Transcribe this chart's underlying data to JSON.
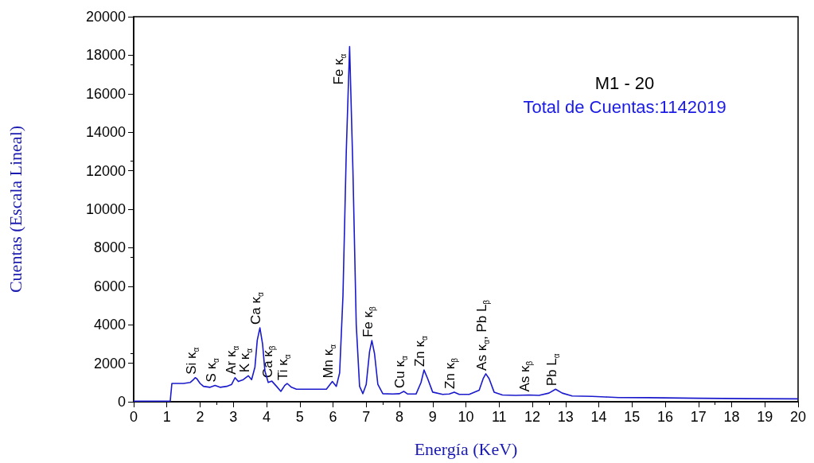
{
  "chart_data": {
    "type": "line",
    "title": "M1 - 20",
    "subtitle": "Total de Cuentas:1142019",
    "xlabel": "Energía (KeV)",
    "ylabel": "Cuentas (Escala Lineal)",
    "xlim": [
      0,
      20
    ],
    "xticks": [
      0,
      1,
      2,
      3,
      4,
      5,
      6,
      7,
      8,
      9,
      10,
      11,
      12,
      13,
      14,
      15,
      16,
      17,
      18,
      19,
      20
    ],
    "ylim": [
      0,
      20000
    ],
    "yticks": [
      0,
      2000,
      4000,
      6000,
      8000,
      10000,
      12000,
      14000,
      16000,
      18000,
      20000
    ],
    "grid": false,
    "marker": "none",
    "line_style": "solid",
    "x": [
      0,
      0.5,
      1.0,
      1.1,
      1.15,
      1.3,
      1.5,
      1.7,
      1.8,
      1.85,
      1.9,
      2.0,
      2.1,
      2.3,
      2.45,
      2.6,
      2.8,
      2.95,
      3.05,
      3.15,
      3.3,
      3.45,
      3.55,
      3.65,
      3.72,
      3.8,
      3.88,
      3.95,
      4.05,
      4.16,
      4.3,
      4.43,
      4.55,
      4.62,
      4.75,
      4.9,
      5.2,
      5.5,
      5.8,
      5.98,
      6.1,
      6.2,
      6.3,
      6.4,
      6.5,
      6.6,
      6.7,
      6.8,
      6.9,
      7.0,
      7.1,
      7.17,
      7.25,
      7.35,
      7.5,
      7.8,
      8.0,
      8.13,
      8.25,
      8.5,
      8.65,
      8.74,
      8.85,
      9.0,
      9.3,
      9.5,
      9.65,
      9.8,
      10.1,
      10.4,
      10.52,
      10.6,
      10.7,
      10.85,
      11.1,
      11.5,
      11.9,
      12.2,
      12.5,
      12.7,
      12.9,
      13.2,
      13.8,
      14.2,
      14.6,
      15.5,
      17,
      18.5,
      20
    ],
    "values": [
      30,
      30,
      30,
      30,
      950,
      950,
      950,
      1000,
      1150,
      1250,
      1200,
      950,
      800,
      750,
      850,
      750,
      800,
      900,
      1250,
      1050,
      1150,
      1350,
      1150,
      1800,
      3200,
      3840,
      3000,
      1600,
      1000,
      1070,
      800,
      540,
      850,
      950,
      750,
      650,
      650,
      650,
      650,
      1050,
      800,
      1500,
      5500,
      13000,
      18450,
      12000,
      4000,
      800,
      420,
      900,
      2600,
      3180,
      2500,
      900,
      420,
      400,
      420,
      540,
      400,
      400,
      1000,
      1650,
      1200,
      500,
      380,
      400,
      500,
      380,
      380,
      600,
      1200,
      1450,
      1200,
      500,
      350,
      330,
      350,
      330,
      450,
      650,
      450,
      300,
      280,
      250,
      220,
      210,
      180,
      160,
      150
    ],
    "color": "#1a1acc",
    "annotations": [
      {
        "text": "Si κ$_{α}$",
        "x": 1.85,
        "y": 1250
      },
      {
        "text": "S κ$_{α}$",
        "x": 2.45,
        "y": 850
      },
      {
        "text": "Ar κ$_{α}$",
        "x": 3.05,
        "y": 1250
      },
      {
        "text": "K κ$_{α}$",
        "x": 3.45,
        "y": 1350
      },
      {
        "text": "Ca κ$_{α}$",
        "x": 3.8,
        "y": 3840
      },
      {
        "text": "Ca κ$_{β}$",
        "x": 4.16,
        "y": 1070
      },
      {
        "text": "Ti κ$_{α}$",
        "x": 4.62,
        "y": 950
      },
      {
        "text": "Mn κ$_{α}$",
        "x": 5.98,
        "y": 1050
      },
      {
        "text": "Fe κ$_{α}$",
        "x": 6.5,
        "y": 18450
      },
      {
        "text": "Fe κ$_{β}$",
        "x": 7.17,
        "y": 3180
      },
      {
        "text": "Cu κ$_{α}$",
        "x": 8.13,
        "y": 540
      },
      {
        "text": "Zn κ$_{α}$",
        "x": 8.74,
        "y": 1650
      },
      {
        "text": "Zn κ$_{β}$",
        "x": 9.65,
        "y": 500
      },
      {
        "text": "As κ$_{α}$, Pb L$_{β}$",
        "x": 10.6,
        "y": 1450
      },
      {
        "text": "As κ$_{β}$",
        "x": 11.9,
        "y": 350
      },
      {
        "text": "Pb L$_{α}$",
        "x": 12.7,
        "y": 650
      }
    ]
  }
}
